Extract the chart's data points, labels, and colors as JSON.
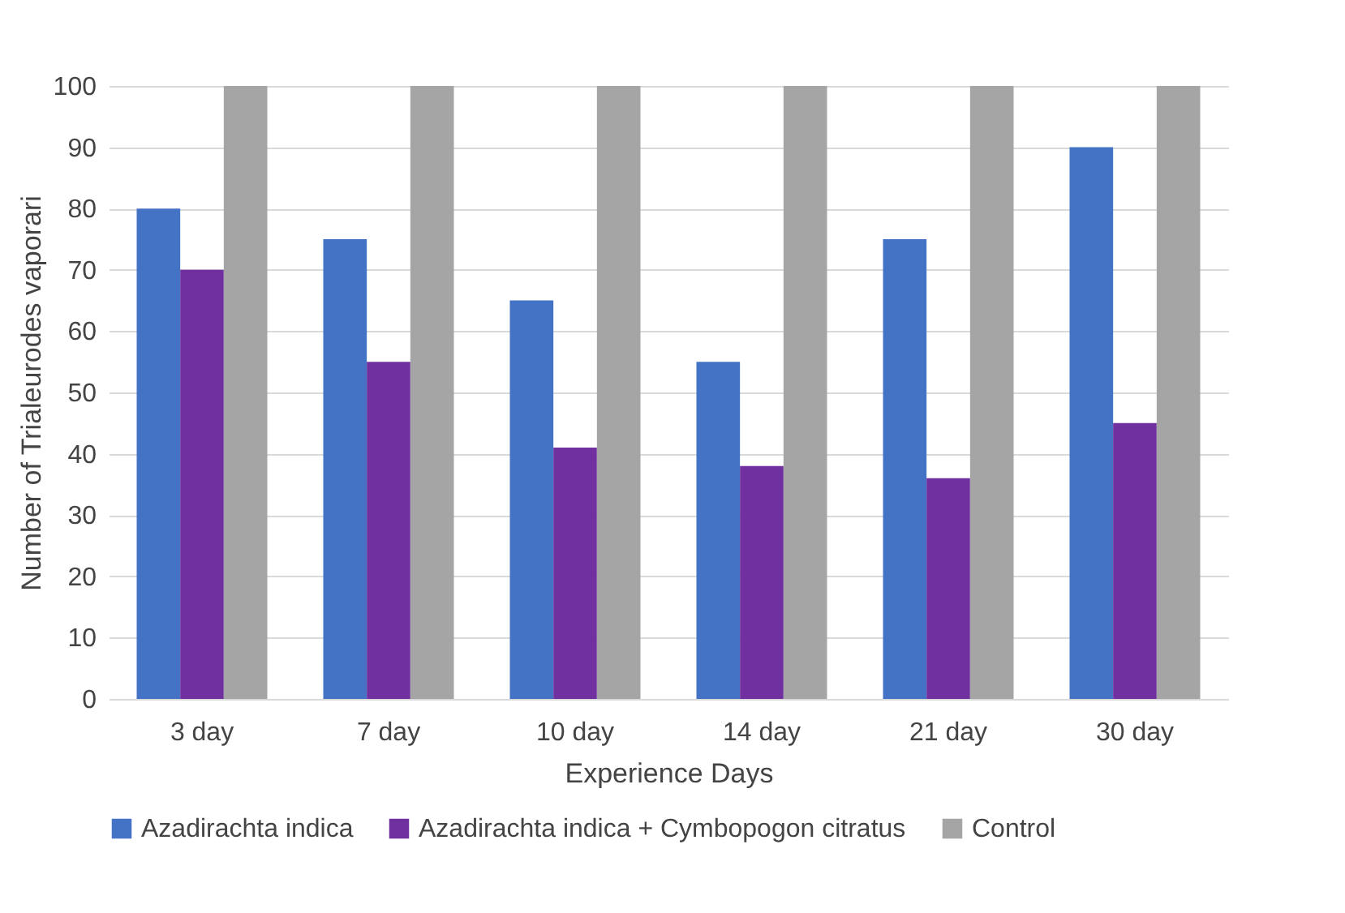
{
  "chart_data": {
    "type": "bar",
    "xlabel": "Experience Days",
    "ylabel": "Number of Trialeurodes vaporari",
    "categories": [
      "3 day",
      "7 day",
      "10 day",
      "14 day",
      "21 day",
      "30 day"
    ],
    "series": [
      {
        "name": "Azadirachta indica",
        "color": "#4472c4",
        "values": [
          80,
          75,
          65,
          55,
          75,
          90
        ]
      },
      {
        "name": "Azadirachta indica + Cymbopogon citratus",
        "color": "#7030a0",
        "values": [
          70,
          55,
          41,
          38,
          36,
          45
        ]
      },
      {
        "name": "Control",
        "color": "#a5a5a5",
        "values": [
          100,
          100,
          100,
          100,
          100,
          100
        ]
      }
    ],
    "ylim": [
      0,
      100
    ],
    "yticks": [
      0,
      10,
      20,
      30,
      40,
      50,
      60,
      70,
      80,
      90,
      100
    ],
    "grid": "y",
    "legend": "bottom"
  }
}
